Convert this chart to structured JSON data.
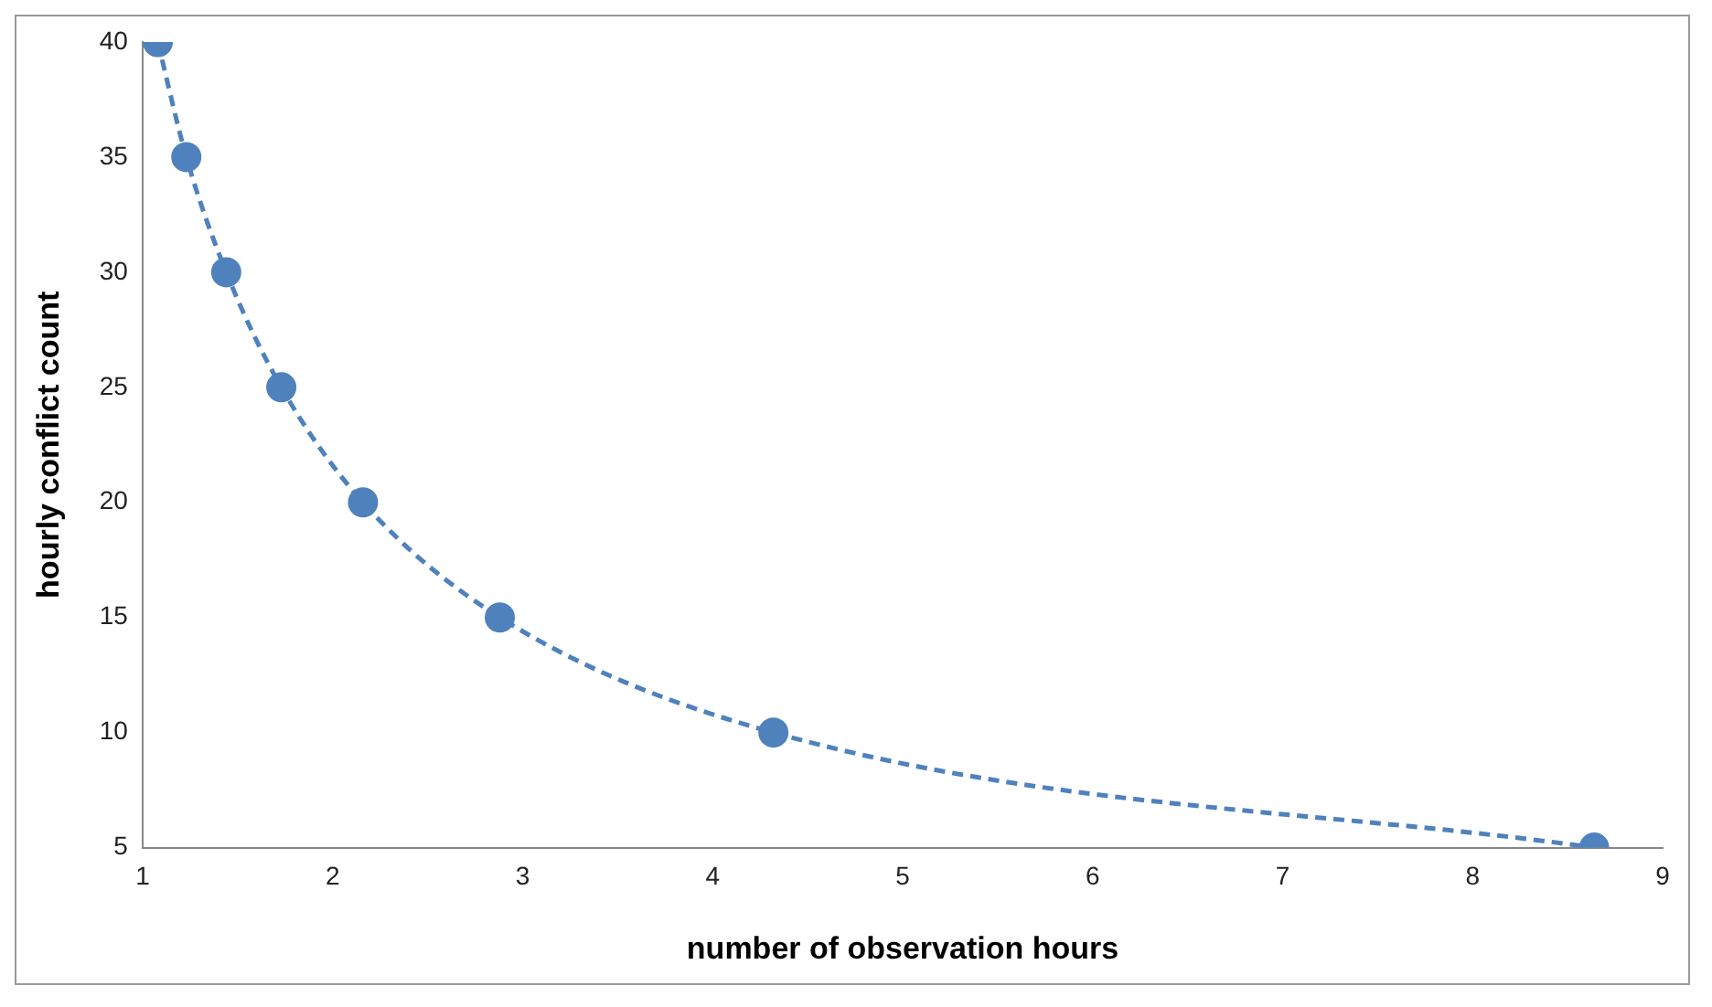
{
  "chart_data": {
    "type": "line",
    "xlabel": "number of observation hours",
    "ylabel": "hourly conflict count",
    "x": [
      1.08,
      1.23,
      1.44,
      1.73,
      2.16,
      2.88,
      4.32,
      8.64
    ],
    "series": [
      {
        "color": "#4f81bd",
        "values": [
          40,
          35,
          30,
          25,
          20,
          15,
          10,
          5
        ]
      }
    ],
    "xlim": [
      1,
      9
    ],
    "xticks": [
      1,
      2,
      3,
      4,
      5,
      6,
      7,
      8,
      9
    ],
    "ylim": [
      5,
      40
    ],
    "yticks": [
      5,
      10,
      15,
      20,
      25,
      30,
      35,
      40
    ],
    "grid": false,
    "legend": false,
    "marker": "circle",
    "line_style": "dashed"
  }
}
